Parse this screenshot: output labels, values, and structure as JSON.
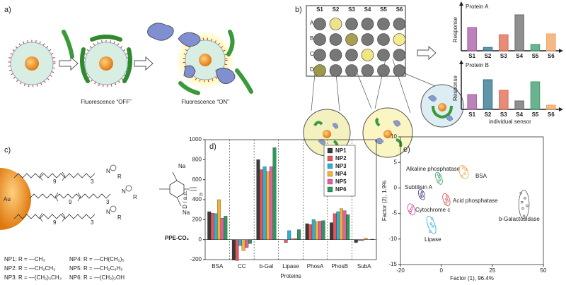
{
  "panel_a": {
    "label": "a)",
    "captions": [
      "Fluorescence “OFF”",
      "Fluorescence “ON”"
    ]
  },
  "panel_b": {
    "label": "b)",
    "plate_columns": [
      "S1",
      "S2",
      "S3",
      "S4",
      "S5",
      "S6"
    ],
    "plate_rows": [
      "A",
      "B",
      "C",
      "D"
    ]
  },
  "panel_c": {
    "label": "c)",
    "gold": "Au",
    "ppe_label": "PPE-CO₂",
    "counter_ion": "Na",
    "repeat_n": "n",
    "chain_counts": [
      "9",
      "3"
    ],
    "r_group": "R",
    "ammonium": "N",
    "variants": [
      "NP1: R = —CH₃",
      "NP2: R = —CH₂CH₃",
      "NP3: R = —(CH₂)₃CH₃",
      "NP4: R = —CH(CH₂)₅",
      "NP5: R = —CH₂C₆H₅",
      "NP6: R = —(CH₂)₂OH"
    ]
  },
  "chart_data": [
    {
      "type": "bar",
      "title": "Protein A",
      "ylabel": "Response",
      "categories": [
        "S1",
        "S2",
        "S3",
        "S4",
        "S5",
        "S6"
      ],
      "values": [
        55,
        8,
        38,
        85,
        15,
        40
      ],
      "colors": [
        "#a45aa2",
        "#2d6f8c",
        "#e0664e",
        "#6a6a6a",
        "#3a9a6a",
        "#f0a35e"
      ],
      "ylim": [
        0,
        100
      ]
    },
    {
      "type": "bar",
      "title": "Protein B",
      "ylabel": "Response",
      "xlabel": "individual sensor",
      "categories": [
        "S1",
        "S2",
        "S3",
        "S4",
        "S5",
        "S6"
      ],
      "values": [
        35,
        70,
        45,
        20,
        65,
        10
      ],
      "colors": [
        "#a45aa2",
        "#2d6f8c",
        "#e0664e",
        "#6a6a6a",
        "#3a9a6a",
        "#f0a35e"
      ],
      "ylim": [
        0,
        100
      ]
    },
    {
      "type": "bar",
      "panel_label": "d)",
      "ylabel": "D / a.u.",
      "xlabel": "Proteins",
      "categories": [
        "BSA",
        "CC",
        "b-Gal",
        "Lipase",
        "PhosA",
        "PhosB",
        "SubA"
      ],
      "series": [
        {
          "name": "NP1",
          "color": "#3a3a3a",
          "values": [
            280,
            -205,
            800,
            0,
            160,
            170,
            -30
          ]
        },
        {
          "name": "NP2",
          "color": "#e8545a",
          "values": [
            265,
            -210,
            700,
            -30,
            150,
            260,
            -10
          ]
        },
        {
          "name": "NP3",
          "color": "#2bb0d8",
          "values": [
            260,
            -60,
            730,
            90,
            200,
            280,
            -10
          ]
        },
        {
          "name": "NP4",
          "color": "#f3b234",
          "values": [
            400,
            -110,
            680,
            10,
            180,
            310,
            15
          ]
        },
        {
          "name": "NP5",
          "color": "#e060a8",
          "values": [
            215,
            -80,
            730,
            10,
            185,
            290,
            0
          ]
        },
        {
          "name": "NP6",
          "color": "#2a9a5a",
          "values": [
            235,
            -40,
            920,
            100,
            190,
            250,
            5
          ]
        }
      ],
      "ylim": [
        -200,
        1000
      ],
      "yticks": [
        -200,
        0,
        200,
        400,
        600,
        800,
        1000
      ],
      "legend": "upper right"
    },
    {
      "type": "scatter",
      "panel_label": "e)",
      "xlabel": "Factor (1), 96.4%",
      "ylabel": "Factor (2), 1.9%",
      "xlim": [
        -20,
        50
      ],
      "xticks": [
        -20,
        0,
        25,
        50
      ],
      "ylim": [
        -15,
        10
      ],
      "yticks": [
        -15,
        -10,
        -5,
        0,
        5,
        10
      ],
      "series": [
        {
          "name": "Alkaline phosphatase",
          "color": "#2a9a5a",
          "x": [
            -1.5,
            -1,
            -0.8,
            -1.3
          ],
          "y": [
            1.2,
            2.2,
            1.6,
            2.6
          ]
        },
        {
          "name": "BSA",
          "color": "#e8a040",
          "x": [
            10,
            12,
            11.5,
            10.8
          ],
          "y": [
            2.3,
            3.5,
            2.8,
            3.9
          ]
        },
        {
          "name": "Subtilisin A",
          "color": "#3a3a8a",
          "x": [
            -10,
            -9.4,
            -9.8,
            -9.2
          ],
          "y": [
            -1.8,
            -0.8,
            -1.2,
            -1.6
          ]
        },
        {
          "name": "Acid phosphatase",
          "color": "#d84040",
          "x": [
            2,
            2.8,
            2.5,
            3
          ],
          "y": [
            -3,
            -1.6,
            -2.2,
            -2.6
          ]
        },
        {
          "name": "Cytochrome c",
          "color": "#d040a0",
          "x": [
            -15.2,
            -14,
            -14.6,
            -15
          ],
          "y": [
            -4.8,
            -3.6,
            -4.1,
            -4.4
          ]
        },
        {
          "name": "Lipase",
          "color": "#2aa8d8",
          "x": [
            -5.5,
            -4.5,
            -5,
            -4.2
          ],
          "y": [
            -8.5,
            -6,
            -7,
            -7.5
          ]
        },
        {
          "name": "b-Galactosidase",
          "color": "#555555",
          "x": [
            39,
            41,
            40,
            42,
            40.5,
            39.5
          ],
          "y": [
            -1,
            -2,
            -4,
            -3.5,
            -5.5,
            -2.8
          ]
        }
      ]
    }
  ]
}
